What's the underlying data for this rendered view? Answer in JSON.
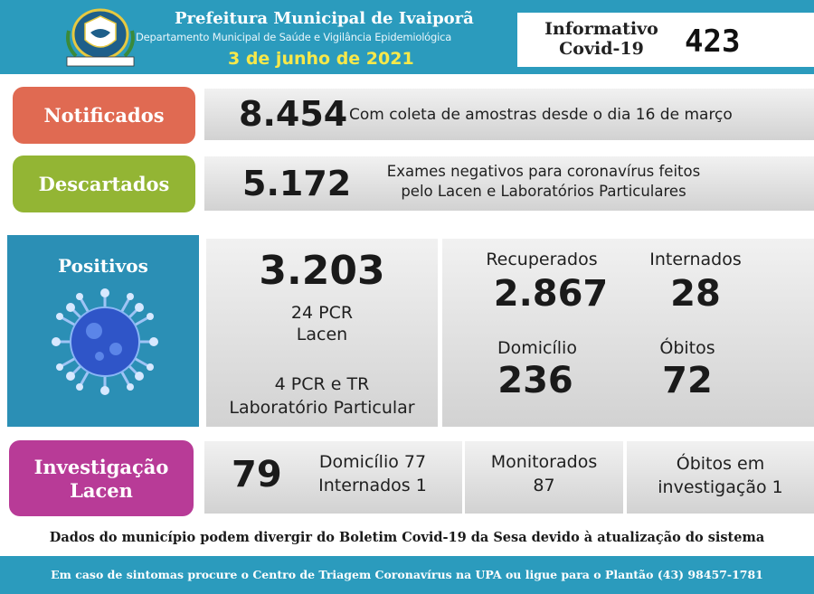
{
  "header": {
    "title": "Prefeitura Municipal de Ivaiporã",
    "department": "Departamento Municipal de Saúde e Vigilância Epidemiológica",
    "date": "3 de junho de 2021",
    "informativo_line1": "Informativo",
    "informativo_line2": "Covid-19",
    "bulletin_number": "423"
  },
  "notificados": {
    "label": "Notificados",
    "value": "8.454",
    "description": "Com coleta de amostras desde o dia 16 de março"
  },
  "descartados": {
    "label": "Descartados",
    "value": "5.172",
    "description_line1": "Exames negativos para coronavírus feitos",
    "description_line2": "pelo Lacen e Laboratórios Particulares"
  },
  "positivos": {
    "label": "Positivos",
    "total": "3.203",
    "lacen_line1": "24 PCR",
    "lacen_line2": "Lacen",
    "particular_line1": "4 PCR e TR",
    "particular_line2": "Laboratório Particular",
    "recuperados_label": "Recuperados",
    "recuperados_value": "2.867",
    "internados_label": "Internados",
    "internados_value": "28",
    "domicilio_label": "Domicílio",
    "domicilio_value": "236",
    "obitos_label": "Óbitos",
    "obitos_value": "72"
  },
  "investigacao": {
    "label_line1": "Investigação",
    "label_line2": "Lacen",
    "total": "79",
    "domicilio": "Domicílio 77",
    "internados": "Internados 1",
    "monitorados_label": "Monitorados",
    "monitorados_value": "87",
    "obitos_line1": "Óbitos em",
    "obitos_line2": "investigação 1"
  },
  "disclaimer": "Dados do município podem divergir do Boletim Covid-19 da Sesa devido à atualização do sistema",
  "footer": "Em caso de sintomas procure o Centro de Triagem Coronavírus na UPA ou ligue para o Plantão (43) 98457-1781",
  "colors": {
    "header_blue": "#2b9bbd",
    "notificados": "#e06a52",
    "descartados": "#93b534",
    "positivos": "#2b8fb5",
    "investigacao": "#b83b97",
    "date_yellow": "#f7e84a"
  },
  "icons": {
    "seal": "municipal-seal-icon",
    "virus": "coronavirus-icon"
  }
}
